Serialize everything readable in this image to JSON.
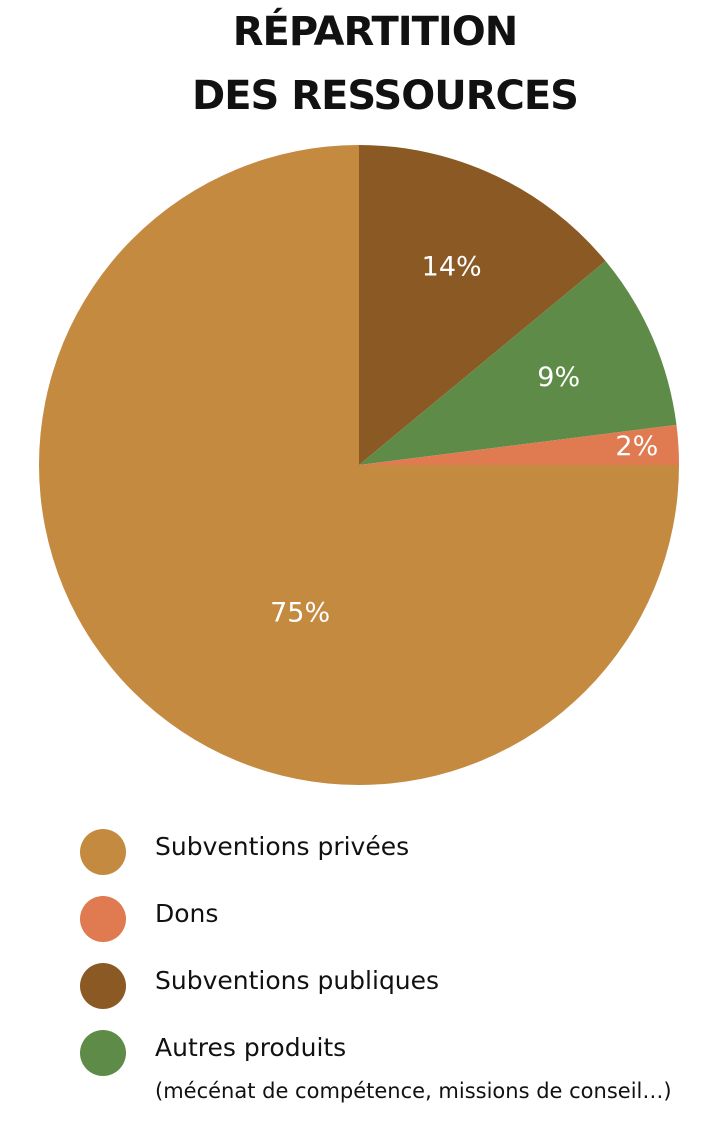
{
  "chart_data": {
    "type": "pie",
    "title": [
      "RÉPARTITION",
      "DES RESSOURCES"
    ],
    "categories": [
      "Subventions publiques",
      "Autres produits",
      "Dons",
      "Subventions privées"
    ],
    "values": [
      14,
      9,
      2,
      75
    ],
    "value_labels": [
      "14%",
      "9%",
      "2%",
      "75%"
    ],
    "colors": [
      "#8b5a24",
      "#5e8c48",
      "#e07a50",
      "#c48a40"
    ],
    "legend_note": "(mécénat de compétence, missions de conseil…)"
  }
}
